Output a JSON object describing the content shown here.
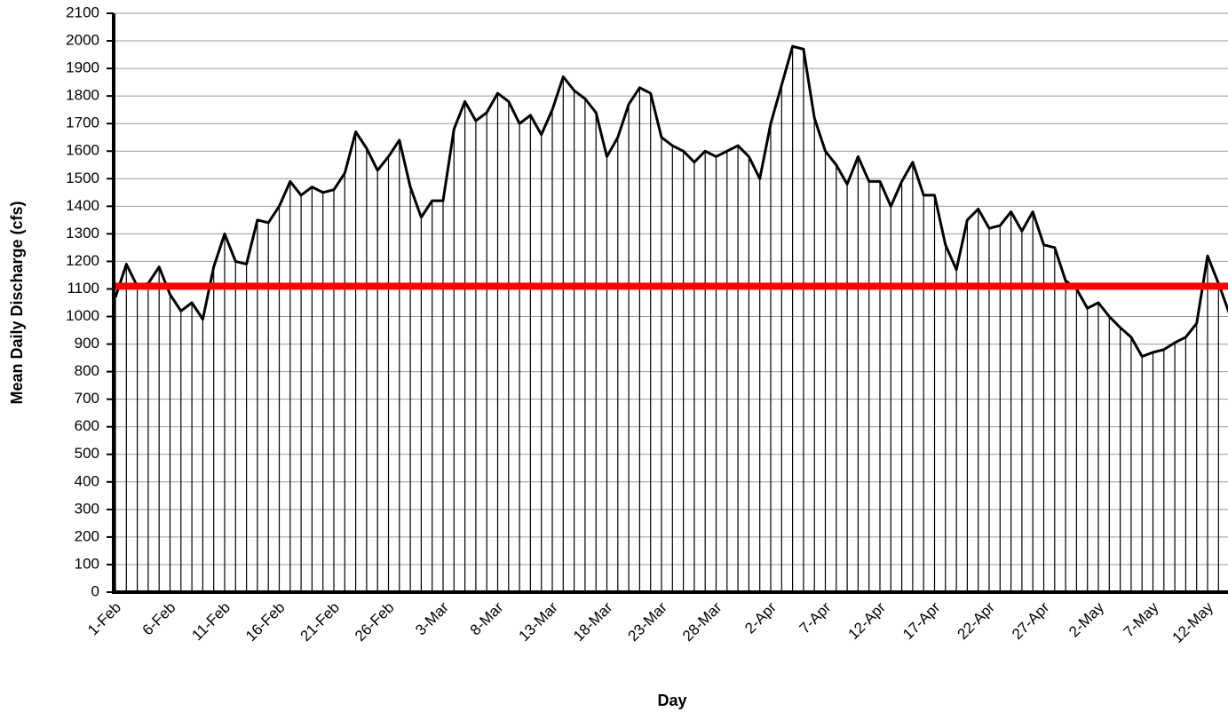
{
  "chart_data": {
    "type": "line",
    "x_label": "Day",
    "y_label": "Mean Daily Discharge (cfs)",
    "categories": [
      "1-Feb",
      null,
      null,
      null,
      null,
      "6-Feb",
      null,
      null,
      null,
      null,
      "11-Feb",
      null,
      null,
      null,
      null,
      "16-Feb",
      null,
      null,
      null,
      null,
      "21-Feb",
      null,
      null,
      null,
      null,
      "26-Feb",
      null,
      null,
      null,
      null,
      "3-Mar",
      null,
      null,
      null,
      null,
      "8-Mar",
      null,
      null,
      null,
      null,
      "13-Mar",
      null,
      null,
      null,
      null,
      "18-Mar",
      null,
      null,
      null,
      null,
      "23-Mar",
      null,
      null,
      null,
      null,
      "28-Mar",
      null,
      null,
      null,
      null,
      "2-Apr",
      null,
      null,
      null,
      null,
      "7-Apr",
      null,
      null,
      null,
      null,
      "12-Apr",
      null,
      null,
      null,
      null,
      "17-Apr",
      null,
      null,
      null,
      null,
      "22-Apr",
      null,
      null,
      null,
      null,
      "27-Apr",
      null,
      null,
      null,
      null,
      "2-May",
      null,
      null,
      null,
      null,
      "7-May",
      null,
      null,
      null,
      null,
      "12-May",
      null,
      null
    ],
    "series": [
      {
        "color": "#000000",
        "values": [
          1070,
          1190,
          1110,
          1120,
          1180,
          1080,
          1020,
          1050,
          990,
          1180,
          1300,
          1200,
          1190,
          1350,
          1340,
          1400,
          1490,
          1440,
          1470,
          1450,
          1460,
          1520,
          1670,
          1610,
          1530,
          1580,
          1640,
          1470,
          1360,
          1420,
          1420,
          1680,
          1780,
          1710,
          1740,
          1810,
          1780,
          1700,
          1730,
          1660,
          1750,
          1870,
          1820,
          1790,
          1740,
          1580,
          1650,
          1770,
          1830,
          1810,
          1650,
          1620,
          1600,
          1560,
          1600,
          1580,
          1600,
          1620,
          1580,
          1500,
          1700,
          1840,
          1980,
          1970,
          1720,
          1600,
          1550,
          1480,
          1580,
          1490,
          1490,
          1400,
          1490,
          1560,
          1440,
          1440,
          1260,
          1170,
          1350,
          1390,
          1320,
          1330,
          1380,
          1310,
          1380,
          1260,
          1250,
          1130,
          1100,
          1030,
          1050,
          1000,
          960,
          925,
          855,
          870,
          880,
          905,
          925,
          975,
          1220,
          1120,
          1010
        ]
      }
    ],
    "reference_line": {
      "value": 1110,
      "color": "#ff0000"
    },
    "ylim": [
      0,
      2100
    ],
    "yticks": [
      0,
      100,
      200,
      300,
      400,
      500,
      600,
      700,
      800,
      900,
      1000,
      1100,
      1200,
      1300,
      1400,
      1500,
      1600,
      1700,
      1800,
      1900,
      2000,
      2100
    ],
    "grid": true,
    "drop_lines": true
  }
}
